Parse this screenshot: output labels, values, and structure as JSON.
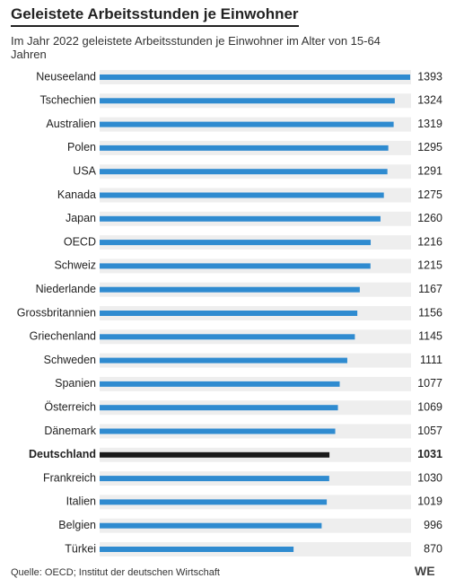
{
  "chart_data": {
    "type": "bar",
    "orientation": "horizontal",
    "title": "Geleistete Arbeitsstunden je Einwohner",
    "subtitle": "Im Jahr 2022 geleistete Arbeitsstunden je Einwohner im Alter von 15-64 Jahren",
    "source": "Quelle: OECD; Institut der deutschen Wirtschaft",
    "logo": "WE",
    "categories": [
      "Neuseeland",
      "Tschechien",
      "Australien",
      "Polen",
      "USA",
      "Kanada",
      "Japan",
      "OECD",
      "Schweiz",
      "Niederlande",
      "Grossbritannien",
      "Griechenland",
      "Schweden",
      "Spanien",
      "Österreich",
      "Dänemark",
      "Deutschland",
      "Frankreich",
      "Italien",
      "Belgien",
      "Türkei"
    ],
    "values": [
      1393,
      1324,
      1319,
      1295,
      1291,
      1275,
      1260,
      1216,
      1215,
      1167,
      1156,
      1145,
      1111,
      1077,
      1069,
      1057,
      1031,
      1030,
      1019,
      996,
      870
    ],
    "xlim": [
      0,
      1393
    ],
    "color": "#2f8bd0",
    "highlight": "Deutschland",
    "highlight_color": "#1a1a1a",
    "track_color": "#eeeeee"
  }
}
